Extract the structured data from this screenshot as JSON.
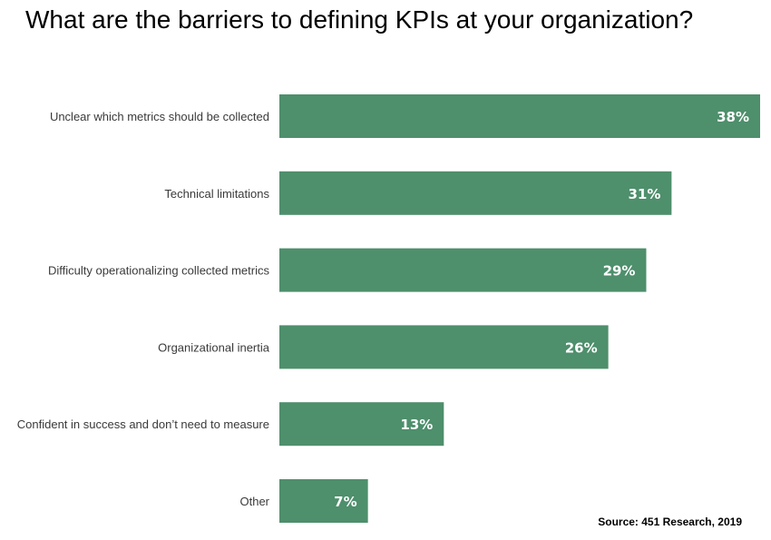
{
  "chart_data": {
    "type": "bar",
    "orientation": "horizontal",
    "title": "What are the barriers to defining KPIs at your organization?",
    "categories": [
      "Unclear which metrics should be collected",
      "Technical limitations",
      "Difficulty operationalizing collected metrics",
      "Organizational inertia",
      "Confident in success and don’t need to measure",
      "Other"
    ],
    "values": [
      38,
      31,
      29,
      26,
      13,
      7
    ],
    "value_labels": [
      "38%",
      "31%",
      "29%",
      "26%",
      "13%",
      "7%"
    ],
    "unit": "%",
    "xlabel": "",
    "ylabel": "",
    "xlim": [
      0,
      38
    ],
    "grid": false,
    "legend": "none",
    "bar_color": "#4e8f6c",
    "source": "Source: 451 Research, 2019"
  }
}
